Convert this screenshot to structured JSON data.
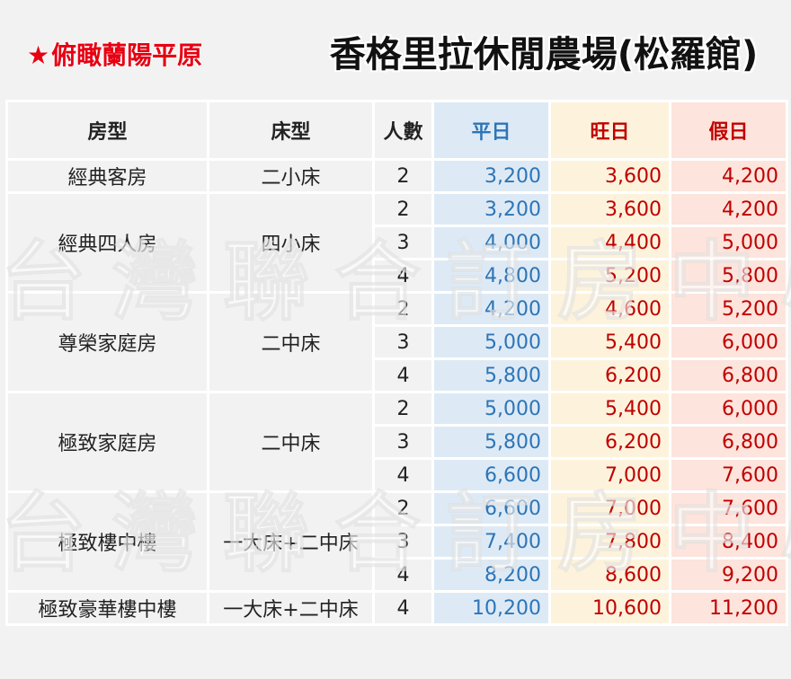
{
  "header": {
    "subtitle_star": "★",
    "subtitle": "俯瞰蘭陽平原",
    "title": "香格里拉休閒農場(松羅館)"
  },
  "columns": {
    "room_type": "房型",
    "bed_type": "床型",
    "people": "人數",
    "weekday": "平日",
    "peak": "旺日",
    "holiday": "假日"
  },
  "groups": [
    {
      "room": "經典客房",
      "bed": "二小床",
      "rows": [
        {
          "people": "2",
          "weekday": "3,200",
          "peak": "3,600",
          "holiday": "4,200"
        }
      ]
    },
    {
      "room": "經典四人房",
      "bed": "四小床",
      "rows": [
        {
          "people": "2",
          "weekday": "3,200",
          "peak": "3,600",
          "holiday": "4,200"
        },
        {
          "people": "3",
          "weekday": "4,000",
          "peak": "4,400",
          "holiday": "5,000"
        },
        {
          "people": "4",
          "weekday": "4,800",
          "peak": "5,200",
          "holiday": "5,800"
        }
      ]
    },
    {
      "room": "尊榮家庭房",
      "bed": "二中床",
      "rows": [
        {
          "people": "2",
          "weekday": "4,200",
          "peak": "4,600",
          "holiday": "5,200"
        },
        {
          "people": "3",
          "weekday": "5,000",
          "peak": "5,400",
          "holiday": "6,000"
        },
        {
          "people": "4",
          "weekday": "5,800",
          "peak": "6,200",
          "holiday": "6,800"
        }
      ]
    },
    {
      "room": "極致家庭房",
      "bed": "二中床",
      "rows": [
        {
          "people": "2",
          "weekday": "5,000",
          "peak": "5,400",
          "holiday": "6,000"
        },
        {
          "people": "3",
          "weekday": "5,800",
          "peak": "6,200",
          "holiday": "6,800"
        },
        {
          "people": "4",
          "weekday": "6,600",
          "peak": "7,000",
          "holiday": "7,600"
        }
      ]
    },
    {
      "room": "極致樓中樓",
      "bed": "一大床+二中床",
      "rows": [
        {
          "people": "2",
          "weekday": "6,600",
          "peak": "7,000",
          "holiday": "7,600"
        },
        {
          "people": "3",
          "weekday": "7,400",
          "peak": "7,800",
          "holiday": "8,400"
        },
        {
          "people": "4",
          "weekday": "8,200",
          "peak": "8,600",
          "holiday": "9,200"
        }
      ]
    },
    {
      "room": "極致豪華樓中樓",
      "bed": "一大床+二中床",
      "rows": [
        {
          "people": "4",
          "weekday": "10,200",
          "peak": "10,600",
          "holiday": "11,200"
        }
      ]
    }
  ],
  "watermark": "台灣聯合訂房中心",
  "colors": {
    "background": "#f2f2f2",
    "weekday_text": "#2e75b6",
    "weekday_bg": "#ddeaf6",
    "peak_bg": "#fdf3dc",
    "holiday_bg": "#fde4dc",
    "price_red": "#c00000",
    "subtitle_red": "#e60012"
  }
}
